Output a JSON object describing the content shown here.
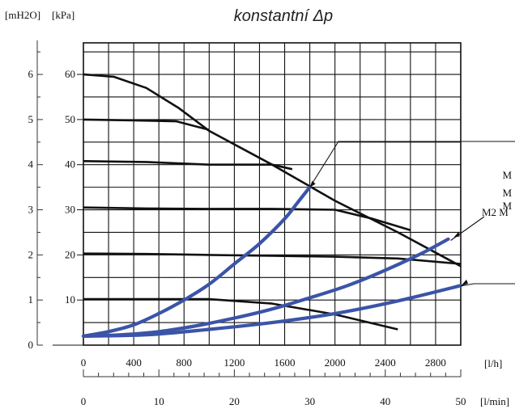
{
  "chart_data": {
    "type": "line",
    "title": "konstantní Δp",
    "y_units": {
      "m": "[mH2O]",
      "kpa": "[kPa]"
    },
    "x_units": {
      "lh": "[l/h]",
      "lmin": "[l/min]"
    },
    "y_m_ticks": [
      "0",
      "1",
      "2",
      "3",
      "4",
      "5",
      "6"
    ],
    "y_kpa_ticks": [
      "10",
      "20",
      "30",
      "40",
      "50",
      "60"
    ],
    "x_lh_ticks": [
      "0",
      "400",
      "800",
      "1200",
      "1600",
      "2000",
      "2400",
      "2800"
    ],
    "x_lmin_ticks": [
      "0",
      "10",
      "20",
      "30",
      "40",
      "50"
    ],
    "xlim_lh": [
      0,
      3000
    ],
    "ylim_kpa": [
      0,
      67
    ],
    "grid": true,
    "callouts": [
      "M",
      "M",
      "M",
      "M2 M"
    ],
    "pump_curves": [
      {
        "x": [
          0,
          240,
          500,
          760,
          1000,
          1500,
          2000,
          2500,
          3000
        ],
        "y": [
          60,
          59.5,
          57,
          52.5,
          47.5,
          40,
          32,
          25,
          17.5
        ]
      },
      {
        "x": [
          0,
          400,
          740,
          1000
        ],
        "y": [
          50,
          49.8,
          49.6,
          47.7
        ]
      },
      {
        "x": [
          0,
          500,
          1000,
          1500,
          1660
        ],
        "y": [
          40.8,
          40.6,
          40,
          40,
          39
        ]
      },
      {
        "x": [
          0,
          500,
          1000,
          1500,
          2000,
          2300,
          2600
        ],
        "y": [
          30.5,
          30.3,
          30.2,
          30.2,
          30,
          28,
          25.5
        ]
      },
      {
        "x": [
          0,
          500,
          1000,
          1500,
          2000,
          2500,
          3000
        ],
        "y": [
          20.3,
          20.2,
          20,
          19.8,
          19.6,
          19.2,
          18
        ]
      },
      {
        "x": [
          0,
          500,
          1000,
          1500,
          2000,
          2500
        ],
        "y": [
          10.2,
          10.2,
          10.2,
          9.2,
          6.8,
          3.5
        ]
      }
    ],
    "system_curves": [
      {
        "x": [
          0,
          200,
          400,
          600,
          800,
          1000,
          1200,
          1400,
          1600,
          1700,
          1800
        ],
        "y": [
          2,
          3,
          4.5,
          7,
          10,
          13.5,
          18,
          22.5,
          28,
          31.5,
          35
        ]
      },
      {
        "x": [
          0,
          300,
          600,
          900,
          1200,
          1500,
          1800,
          2100,
          2400,
          2700,
          2900
        ],
        "y": [
          2,
          2.3,
          3,
          4.3,
          6,
          8,
          10.5,
          13.2,
          16.6,
          20.5,
          23.5
        ]
      },
      {
        "x": [
          0,
          500,
          1000,
          1500,
          2000,
          2500,
          3000
        ],
        "y": [
          2,
          2.3,
          3.5,
          5,
          7,
          9.8,
          13.2
        ]
      }
    ]
  }
}
